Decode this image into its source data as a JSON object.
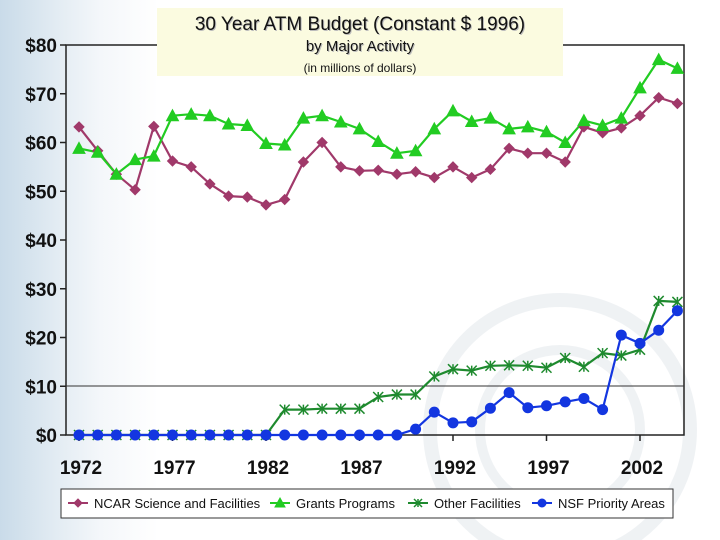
{
  "chart_data": {
    "type": "line",
    "title": "30 Year ATM Budget (Constant $ 1996)",
    "subtitle": "by Major Activity",
    "note": "(in millions of dollars)",
    "ylim": [
      0,
      80
    ],
    "yticks": [
      0,
      10,
      20,
      30,
      40,
      50,
      60,
      70,
      80
    ],
    "ytick_labels": [
      "$0",
      "$10",
      "$20",
      "$30",
      "$40",
      "$50",
      "$60",
      "$70",
      "$80"
    ],
    "xlim": [
      1972,
      2004
    ],
    "xticks": [
      1972,
      1977,
      1982,
      1987,
      1992,
      1997,
      2002
    ],
    "xtick_labels": [
      "1972",
      "1977",
      "1982",
      "1987",
      "1992",
      "1997",
      "2002"
    ],
    "grid": "horizontal line at $10",
    "legend_position": "bottom",
    "x": [
      1972,
      1973,
      1974,
      1975,
      1976,
      1977,
      1978,
      1979,
      1980,
      1981,
      1982,
      1983,
      1984,
      1985,
      1986,
      1987,
      1988,
      1989,
      1990,
      1991,
      1992,
      1993,
      1994,
      1995,
      1996,
      1997,
      1998,
      1999,
      2000,
      2001,
      2002,
      2003,
      2004
    ],
    "series": [
      {
        "name": "NCAR Science and Facilities",
        "color": "#a0396a",
        "marker": "diamond",
        "values": [
          63.2,
          58.3,
          53.5,
          50.3,
          63.3,
          56.2,
          55.0,
          51.5,
          49.0,
          48.8,
          47.2,
          48.3,
          56.0,
          60.0,
          55.0,
          54.2,
          54.3,
          53.5,
          54.0,
          52.8,
          55.0,
          52.8,
          54.5,
          58.8,
          57.8,
          57.8,
          56.0,
          63.2,
          62.0,
          63.0,
          65.5,
          69.2,
          68.0
        ]
      },
      {
        "name": "Grants Programs",
        "color": "#22cc22",
        "marker": "triangle",
        "values": [
          58.8,
          58.0,
          53.5,
          56.5,
          57.2,
          65.5,
          65.8,
          65.5,
          63.8,
          63.5,
          59.8,
          59.5,
          65.0,
          65.5,
          64.2,
          62.8,
          60.2,
          57.8,
          58.3,
          62.8,
          66.5,
          64.3,
          65.0,
          62.8,
          63.2,
          62.2,
          60.0,
          64.5,
          63.5,
          65.0,
          71.2,
          77.0,
          75.2
        ]
      },
      {
        "name": "Other Facilities",
        "color": "#1e8a2e",
        "marker": "star",
        "values": [
          0,
          0,
          0,
          0,
          0,
          0,
          0,
          0,
          0,
          0,
          0,
          5.2,
          5.2,
          5.4,
          5.4,
          5.4,
          7.8,
          8.3,
          8.3,
          12.0,
          13.5,
          13.2,
          14.2,
          14.3,
          14.2,
          13.8,
          15.8,
          14.0,
          16.8,
          16.3,
          17.5,
          27.5,
          27.3
        ]
      },
      {
        "name": "NSF Priority Areas",
        "color": "#1336e0",
        "marker": "circle",
        "values": [
          0,
          0,
          0,
          0,
          0,
          0,
          0,
          0,
          0,
          0,
          0,
          0,
          0,
          0,
          0,
          0,
          0,
          0,
          1.2,
          4.7,
          2.5,
          2.7,
          5.5,
          8.7,
          5.6,
          6.0,
          6.8,
          7.5,
          5.2,
          20.5,
          18.8,
          21.5,
          25.5
        ]
      }
    ]
  }
}
